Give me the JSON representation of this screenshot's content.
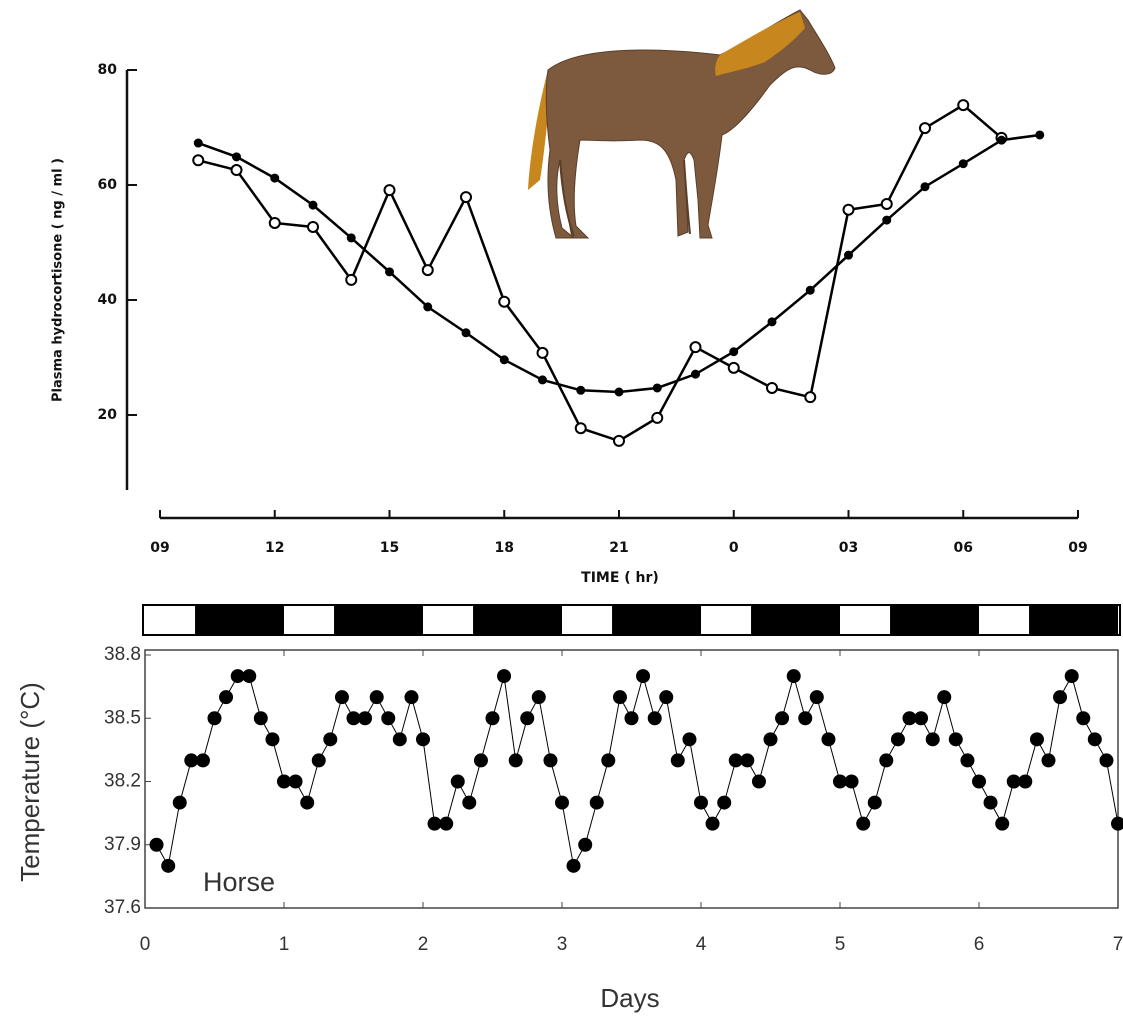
{
  "chart_data": [
    {
      "type": "line",
      "x_label": "TIME ( hr)",
      "y_label": "Plasma hydrocortisone ( ng / ml )",
      "xlim": [
        9,
        33
      ],
      "xticks": [
        {
          "value": 9,
          "label": "09"
        },
        12,
        15,
        18,
        21,
        {
          "value": 24,
          "label": "0"
        },
        {
          "value": 27,
          "label": "03"
        },
        {
          "value": 30,
          "label": "06"
        },
        {
          "value": 33,
          "label": "09"
        }
      ],
      "ylim": [
        6,
        80
      ],
      "yticks": [
        20,
        40,
        60,
        80
      ],
      "series": [
        {
          "color": "#000000",
          "marker": "open",
          "x": [
            10,
            11,
            12,
            13,
            14,
            15,
            16,
            17,
            18,
            19,
            20,
            21,
            22,
            23,
            24,
            25,
            26,
            27,
            28,
            29,
            30,
            31
          ],
          "values": [
            64.3,
            62.6,
            53.4,
            52.7,
            43.5,
            59.1,
            45.2,
            57.9,
            39.7,
            30.8,
            17.7,
            15.5,
            19.5,
            31.8,
            28.2,
            24.7,
            23.1,
            55.7,
            56.7,
            69.9,
            73.9,
            68.2
          ]
        },
        {
          "color": "#000000",
          "marker": "filled",
          "x": [
            10,
            11,
            12,
            13,
            14,
            15,
            16,
            17,
            18,
            19,
            20,
            21,
            22,
            23,
            24,
            25,
            26,
            27,
            28,
            29,
            30,
            31,
            32
          ],
          "values": [
            67.3,
            64.9,
            61.2,
            56.5,
            50.8,
            44.9,
            38.8,
            34.3,
            29.6,
            26.1,
            24.3,
            24.0,
            24.7,
            27.1,
            31.0,
            36.2,
            41.7,
            47.8,
            53.9,
            59.7,
            63.7,
            67.8,
            68.7
          ]
        }
      ]
    },
    {
      "type": "line",
      "x_label": "Days",
      "y_label": "Temperature (°C)",
      "annotation": "Horse",
      "xlim": [
        0,
        7
      ],
      "xticks": [
        0,
        1,
        2,
        3,
        4,
        5,
        6,
        7
      ],
      "ylim": [
        37.6,
        38.8
      ],
      "yticks": [
        37.6,
        37.9,
        38.2,
        38.5,
        38.8
      ],
      "series": [
        {
          "color": "#000000",
          "marker": "filled",
          "x": [
            0.083,
            0.167,
            0.25,
            0.333,
            0.417,
            0.5,
            0.583,
            0.667,
            0.75,
            0.833,
            0.917,
            1,
            1.083,
            1.167,
            1.25,
            1.333,
            1.417,
            1.5,
            1.583,
            1.667,
            1.75,
            1.833,
            1.917,
            2,
            2.083,
            2.167,
            2.25,
            2.333,
            2.417,
            2.5,
            2.583,
            2.667,
            2.75,
            2.833,
            2.917,
            3,
            3.083,
            3.167,
            3.25,
            3.333,
            3.417,
            3.5,
            3.583,
            3.667,
            3.75,
            3.833,
            3.917,
            4,
            4.083,
            4.167,
            4.25,
            4.333,
            4.417,
            4.5,
            4.583,
            4.667,
            4.75,
            4.833,
            4.917,
            5,
            5.083,
            5.167,
            5.25,
            5.333,
            5.417,
            5.5,
            5.583,
            5.667,
            5.75,
            5.833,
            5.917,
            6,
            6.083,
            6.167,
            6.25,
            6.333,
            6.417,
            6.5,
            6.583,
            6.667,
            6.75,
            6.833,
            6.917,
            7
          ],
          "values": [
            37.9,
            37.8,
            38.1,
            38.3,
            38.3,
            38.5,
            38.6,
            38.7,
            38.7,
            38.5,
            38.4,
            38.2,
            38.2,
            38.1,
            38.3,
            38.4,
            38.6,
            38.5,
            38.5,
            38.6,
            38.5,
            38.4,
            38.6,
            38.4,
            38.0,
            38.0,
            38.2,
            38.1,
            38.3,
            38.5,
            38.7,
            38.3,
            38.5,
            38.6,
            38.3,
            38.1,
            37.8,
            37.9,
            38.1,
            38.3,
            38.6,
            38.5,
            38.7,
            38.5,
            38.6,
            38.3,
            38.4,
            38.1,
            38.0,
            38.1,
            38.3,
            38.3,
            38.2,
            38.4,
            38.5,
            38.7,
            38.5,
            38.6,
            38.4,
            38.2,
            38.2,
            38.0,
            38.1,
            38.3,
            38.4,
            38.5,
            38.5,
            38.4,
            38.6,
            38.4,
            38.3,
            38.2,
            38.1,
            38.0,
            38.2,
            38.2,
            38.4,
            38.3,
            38.6,
            38.7,
            38.5,
            38.4,
            38.3,
            38.0
          ]
        }
      ]
    }
  ]
}
